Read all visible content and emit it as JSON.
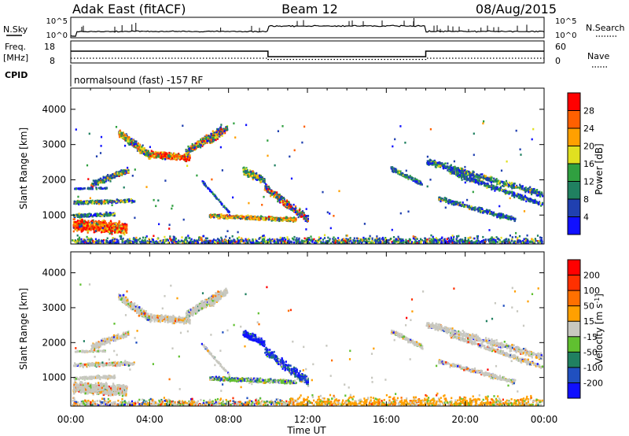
{
  "header": {
    "station": "Adak East (fitACF)",
    "beam": "Beam 12",
    "date": "08/Aug/2015"
  },
  "top_panels": {
    "nsky_label": "N.Sky",
    "nsearch_label": "N.Search",
    "n_ticks": [
      "10^5",
      "10^0"
    ],
    "freq_label_1": "Freq.",
    "freq_label_2": "[MHz]",
    "freq_ticks": [
      "18",
      "8"
    ],
    "nave_label": "Nave",
    "nave_ticks": [
      "60",
      "0"
    ],
    "cpid_label": "CPID",
    "cpid_text": "normalsound (fast) -157 RF"
  },
  "chart_data": [
    {
      "type": "heatmap",
      "name": "power",
      "ylabel": "Slant Range [km]",
      "yticks": [
        1000,
        2000,
        3000,
        4000
      ],
      "ylim": [
        180,
        4600
      ],
      "xticks": [
        "00:00",
        "04:00",
        "08:00",
        "12:00",
        "16:00",
        "20:00",
        "00:00"
      ],
      "xlim_hours": [
        0,
        24
      ],
      "colorbar": {
        "label": "Power [dB]",
        "ticks": [
          "4",
          "8",
          "12",
          "16",
          "20",
          "24",
          "28"
        ],
        "colors": [
          "#1010ff",
          "#2040b0",
          "#208060",
          "#30a040",
          "#e0e020",
          "#ffa000",
          "#ff6000",
          "#ff0000"
        ]
      }
    },
    {
      "type": "heatmap",
      "name": "velocity",
      "ylabel": "Slant Range [km]",
      "yticks": [
        1000,
        2000,
        3000,
        4000
      ],
      "ylim": [
        180,
        4600
      ],
      "xticks": [
        "00:00",
        "04:00",
        "08:00",
        "12:00",
        "16:00",
        "20:00",
        "00:00"
      ],
      "xlim_hours": [
        0,
        24
      ],
      "xlabel": "Time UT",
      "colorbar": {
        "label": "Velocity [m s",
        "label_sup": "-1",
        "label_end": "]",
        "ticks": [
          "200",
          "100",
          "50",
          "15",
          "-15",
          "-50",
          "-100",
          "-200"
        ],
        "colors": [
          "#1010ff",
          "#2050c0",
          "#208060",
          "#60c030",
          "#c8c8c0",
          "#ffa000",
          "#ff7000",
          "#ff3000",
          "#ff0000"
        ]
      }
    }
  ]
}
